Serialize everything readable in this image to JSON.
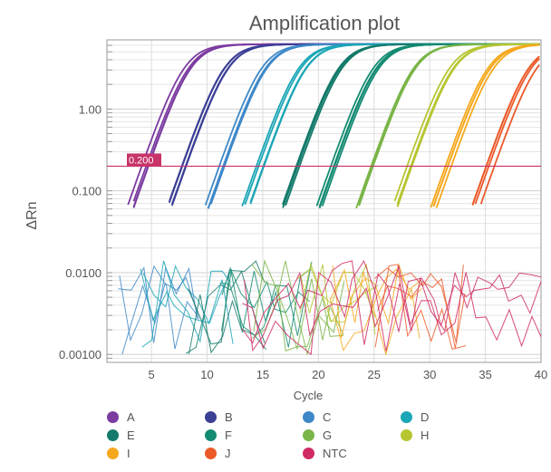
{
  "chart_data": {
    "type": "line",
    "title": "Amplification plot",
    "xlabel": "Cycle",
    "ylabel": "ΔRn",
    "x_ticks": [
      "5",
      "10",
      "15",
      "20",
      "25",
      "30",
      "35",
      "40"
    ],
    "y_ticks": [
      "1.00",
      "0.100",
      "0.0100",
      "0.00100"
    ],
    "y_scale": "log",
    "xlim": [
      1,
      40
    ],
    "ylim": [
      0.0008,
      7
    ],
    "grid": true,
    "threshold": {
      "label": "0.200",
      "value": 0.2,
      "color": "#c8336a"
    },
    "series": [
      {
        "name": "A",
        "color": "#7b3ba0",
        "ct": 4.3,
        "noise": false
      },
      {
        "name": "B",
        "color": "#3b3f95",
        "ct": 8.0,
        "noise": false
      },
      {
        "name": "C",
        "color": "#3e88c8",
        "ct": 11.5,
        "noise": true
      },
      {
        "name": "D",
        "color": "#1aa6b6",
        "ct": 14.8,
        "noise": true
      },
      {
        "name": "E",
        "color": "#147a6b",
        "ct": 18.2,
        "noise": true
      },
      {
        "name": "F",
        "color": "#138b72",
        "ct": 21.5,
        "noise": true
      },
      {
        "name": "G",
        "color": "#7ab548",
        "ct": 24.8,
        "noise": true
      },
      {
        "name": "H",
        "color": "#b7c531",
        "ct": 28.0,
        "noise": true
      },
      {
        "name": "I",
        "color": "#f5a81d",
        "ct": 31.5,
        "noise": true
      },
      {
        "name": "J",
        "color": "#ec5a2a",
        "ct": 35.5,
        "noise": true
      },
      {
        "name": "NTC",
        "color": "#d02a65",
        "ct": null,
        "noise": true
      }
    ],
    "legend_position": "bottom"
  }
}
